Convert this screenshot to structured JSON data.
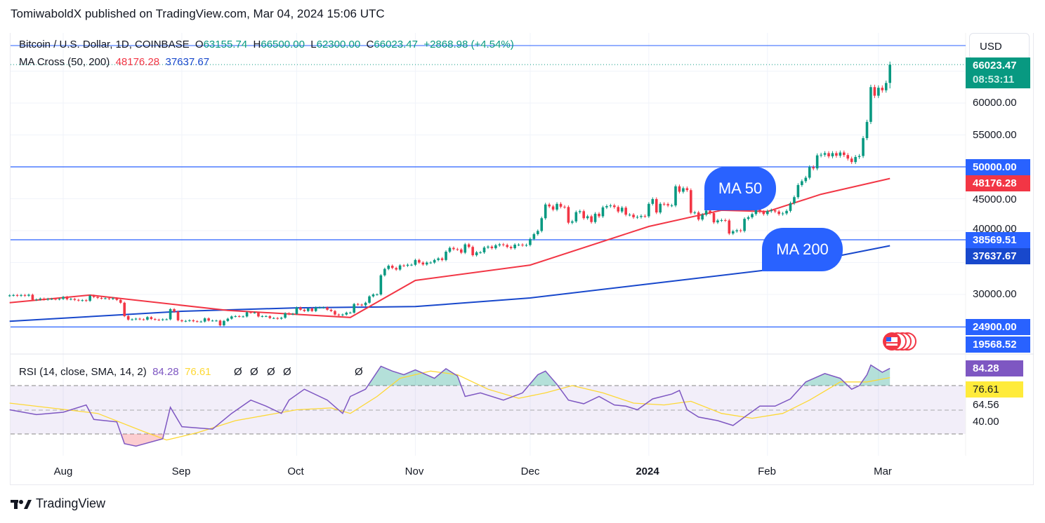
{
  "publisher_line": "TomiwaboldX published on TradingView.com, Mar 04, 2024 15:06 UTC",
  "legend": {
    "symbol": "Bitcoin / U.S. Dollar, 1D, COINBASE",
    "o_label": "O",
    "o": "63155.74",
    "h_label": "H",
    "h": "66500.00",
    "l_label": "L",
    "l": "62300.00",
    "c_label": "C",
    "c": "66023.47",
    "change": "+2868.98 (+4.54%)",
    "ma_title": "MA Cross (50, 200)",
    "ma50": "48176.28",
    "ma200": "37637.67",
    "rsi_title": "RSI (14, close, SMA, 14, 2)",
    "rsi": "84.28",
    "rsi_sma": "76.61",
    "nulls": [
      "Ø",
      "Ø",
      "Ø",
      "Ø",
      "Ø"
    ]
  },
  "currency_button": "USD",
  "price_axis": {
    "ticks": [
      "60000.00",
      "55000.00",
      "45000.00",
      "40000.00",
      "30000.00"
    ],
    "last_price": "66023.47",
    "countdown": "08:53:11",
    "line_labels": [
      "50000.00",
      "38569.51",
      "24900.00",
      "19568.52"
    ],
    "ma50_label": "48176.28",
    "ma200_label": "37637.67"
  },
  "rsi_axis": {
    "rsi_label": "84.28",
    "sma_label": "76.61",
    "ticks": [
      "64.56",
      "40.00"
    ]
  },
  "time_axis": [
    "Aug",
    "Sep",
    "Oct",
    "Nov",
    "Dec",
    "2024",
    "Feb",
    "Mar"
  ],
  "annotations": {
    "ma50": "MA 50",
    "ma200": "MA 200"
  },
  "branding": "TradingView",
  "colors": {
    "up": "#089981",
    "down": "#f23645",
    "ma50": "#f23645",
    "ma200": "#1848cc",
    "hline": "#2962ff",
    "rsi": "#7e57c2",
    "rsi_sma": "#fdd835"
  },
  "chart_data": [
    {
      "type": "candlestick",
      "title": "Bitcoin / U.S. Dollar, 1D, COINBASE",
      "first_date": "2023-07-18",
      "interval": "1D",
      "first_open": 29800,
      "last": {
        "open": 63155.74,
        "high": 66500,
        "low": 62300,
        "close": 66023.47
      },
      "closes": [
        29850,
        29900,
        29800,
        29900,
        29800,
        29950,
        29150,
        29200,
        29350,
        29200,
        29300,
        29300,
        29250,
        29300,
        29600,
        29250,
        29300,
        29150,
        29050,
        29100,
        29000,
        29800,
        29600,
        29450,
        29400,
        29400,
        29300,
        29400,
        29150,
        28700,
        26600,
        26050,
        26100,
        26200,
        26100,
        26050,
        26450,
        26150,
        26050,
        26000,
        26100,
        26100,
        27700,
        27300,
        25950,
        25800,
        25850,
        25950,
        25800,
        25750,
        25750,
        26250,
        25900,
        25900,
        25900,
        25150,
        25850,
        26200,
        26550,
        26600,
        26550,
        26550,
        27200,
        27150,
        27150,
        26550,
        26600,
        26600,
        26300,
        26300,
        26200,
        26350,
        27050,
        26900,
        26950,
        27950,
        27600,
        27400,
        27800,
        27400,
        27950,
        27950,
        27950,
        27600,
        27400,
        26850,
        26750,
        26850,
        27150,
        27150,
        28500,
        28400,
        28300,
        28700,
        29700,
        30000,
        30000,
        33000,
        34000,
        34500,
        34150,
        33900,
        34550,
        34500,
        34650,
        34650,
        35400,
        35000,
        34700,
        35000,
        35000,
        35400,
        35650,
        35400,
        36700,
        37300,
        37100,
        37050,
        36550,
        37850,
        37450,
        36150,
        36600,
        36600,
        37350,
        37500,
        37250,
        37700,
        37850,
        37750,
        37450,
        37250,
        37800,
        37800,
        37700,
        37750,
        38700,
        39450,
        39950,
        41950,
        44100,
        43800,
        43300,
        44200,
        43750,
        43700,
        41250,
        41450,
        42900,
        43050,
        41950,
        42250,
        41350,
        42650,
        42250,
        43650,
        43850,
        43950,
        43700,
        43000,
        43600,
        42500,
        42500,
        42100,
        42150,
        42300,
        42250,
        44200,
        44950,
        42850,
        44200,
        44150,
        43950,
        43950,
        46950,
        46100,
        46650,
        46350,
        42800,
        42850,
        41750,
        42500,
        43150,
        42750,
        41300,
        41600,
        41650,
        41600,
        39550,
        39900,
        40050,
        39950,
        41850,
        42100,
        42600,
        43300,
        42950,
        42600,
        43050,
        43200,
        43000,
        42600,
        42700,
        43100,
        44300,
        45250,
        47150,
        47750,
        48300,
        49950,
        49750,
        51800,
        51900,
        52150,
        51650,
        52150,
        51750,
        52250,
        51850,
        51300,
        50750,
        51550,
        51700,
        54500,
        57050,
        62500,
        61150,
        62400,
        62000,
        63150,
        66023.47
      ],
      "ma50": [
        [
          "2023-07-18",
          28700
        ],
        [
          "2023-08-08",
          29900
        ],
        [
          "2023-09-13",
          27500
        ],
        [
          "2023-10-15",
          26400
        ],
        [
          "2023-11-01",
          32200
        ],
        [
          "2023-12-01",
          34600
        ],
        [
          "2024-01-01",
          40660
        ],
        [
          "2024-01-20",
          43200
        ],
        [
          "2024-02-01",
          43000
        ],
        [
          "2024-02-15",
          45700
        ],
        [
          "2024-03-04",
          48176.28
        ]
      ],
      "ma200": [
        [
          "2023-07-18",
          25800
        ],
        [
          "2023-09-01",
          27360
        ],
        [
          "2023-10-01",
          27900
        ],
        [
          "2023-11-01",
          28100
        ],
        [
          "2023-12-01",
          29450
        ],
        [
          "2024-01-01",
          31650
        ],
        [
          "2024-02-01",
          33850
        ],
        [
          "2024-03-04",
          37637.67
        ]
      ],
      "horizontal_lines": [
        50000,
        38569.51,
        24900
      ],
      "ylim": [
        19000,
        70000
      ],
      "xlim": [
        "2023-07-18",
        "2024-03-10"
      ],
      "grid": true
    },
    {
      "type": "line",
      "title": "RSI (14, close, SMA, 14, 2)",
      "ylim": [
        10,
        95
      ],
      "bands": [
        30,
        50,
        70
      ],
      "rsi": [
        [
          "2023-07-18",
          50
        ],
        [
          "2023-07-25",
          46
        ],
        [
          "2023-08-01",
          48
        ],
        [
          "2023-08-07",
          54
        ],
        [
          "2023-08-09",
          42
        ],
        [
          "2023-08-15",
          40
        ],
        [
          "2023-08-17",
          22
        ],
        [
          "2023-08-20",
          20
        ],
        [
          "2023-08-27",
          26
        ],
        [
          "2023-08-29",
          52
        ],
        [
          "2023-09-01",
          36
        ],
        [
          "2023-09-09",
          34
        ],
        [
          "2023-09-14",
          47
        ],
        [
          "2023-09-19",
          58
        ],
        [
          "2023-09-23",
          53
        ],
        [
          "2023-09-27",
          47
        ],
        [
          "2023-09-29",
          58
        ],
        [
          "2023-10-03",
          67
        ],
        [
          "2023-10-09",
          58
        ],
        [
          "2023-10-13",
          47
        ],
        [
          "2023-10-15",
          61
        ],
        [
          "2023-10-19",
          67
        ],
        [
          "2023-10-23",
          86
        ],
        [
          "2023-10-26",
          82
        ],
        [
          "2023-10-29",
          79
        ],
        [
          "2023-11-01",
          83
        ],
        [
          "2023-11-06",
          76
        ],
        [
          "2023-11-09",
          84
        ],
        [
          "2023-11-12",
          78
        ],
        [
          "2023-11-14",
          61
        ],
        [
          "2023-11-18",
          64
        ],
        [
          "2023-11-24",
          58
        ],
        [
          "2023-11-29",
          64
        ],
        [
          "2023-12-03",
          79
        ],
        [
          "2023-12-05",
          82
        ],
        [
          "2023-12-08",
          71
        ],
        [
          "2023-12-11",
          58
        ],
        [
          "2023-12-15",
          55
        ],
        [
          "2023-12-19",
          61
        ],
        [
          "2023-12-23",
          54
        ],
        [
          "2023-12-26",
          53
        ],
        [
          "2023-12-29",
          50
        ],
        [
          "2024-01-02",
          59
        ],
        [
          "2024-01-07",
          63
        ],
        [
          "2024-01-09",
          66
        ],
        [
          "2024-01-11",
          50
        ],
        [
          "2024-01-14",
          44
        ],
        [
          "2024-01-19",
          41
        ],
        [
          "2024-01-23",
          37
        ],
        [
          "2024-01-26",
          44
        ],
        [
          "2024-01-30",
          53
        ],
        [
          "2024-02-03",
          53
        ],
        [
          "2024-02-07",
          59
        ],
        [
          "2024-02-11",
          73
        ],
        [
          "2024-02-16",
          80
        ],
        [
          "2024-02-20",
          76
        ],
        [
          "2024-02-23",
          67
        ],
        [
          "2024-02-25",
          70
        ],
        [
          "2024-02-27",
          79
        ],
        [
          "2024-02-28",
          87
        ],
        [
          "2024-03-02",
          81
        ],
        [
          "2024-03-04",
          84.28
        ]
      ],
      "rsi_sma": [
        [
          "2023-07-18",
          55.5
        ],
        [
          "2023-08-10",
          47
        ],
        [
          "2023-08-22",
          32
        ],
        [
          "2023-08-28",
          25
        ],
        [
          "2023-09-05",
          31
        ],
        [
          "2023-09-15",
          41
        ],
        [
          "2023-10-01",
          50
        ],
        [
          "2023-10-10",
          51.5
        ],
        [
          "2023-10-15",
          47
        ],
        [
          "2023-10-22",
          61
        ],
        [
          "2023-10-28",
          76
        ],
        [
          "2023-11-05",
          82
        ],
        [
          "2023-11-12",
          79
        ],
        [
          "2023-11-20",
          67
        ],
        [
          "2023-11-28",
          59.5
        ],
        [
          "2023-12-05",
          64
        ],
        [
          "2023-12-12",
          70
        ],
        [
          "2023-12-20",
          64
        ],
        [
          "2023-12-28",
          55.5
        ],
        [
          "2024-01-05",
          54
        ],
        [
          "2024-01-12",
          57
        ],
        [
          "2024-01-20",
          47
        ],
        [
          "2024-01-28",
          43
        ],
        [
          "2024-02-05",
          47
        ],
        [
          "2024-02-12",
          58
        ],
        [
          "2024-02-20",
          73
        ],
        [
          "2024-02-27",
          73
        ],
        [
          "2024-03-04",
          76.61
        ]
      ]
    }
  ]
}
